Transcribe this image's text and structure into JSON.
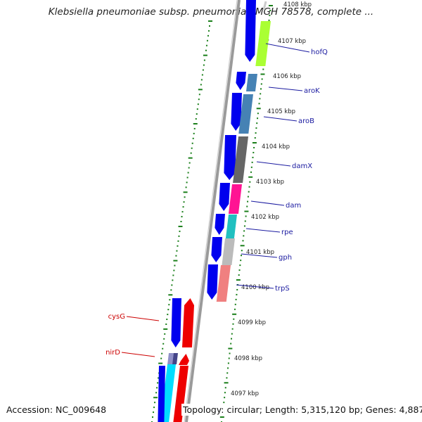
{
  "title": "Klebsiella pneumoniae subsp. pneumoniae MGH 78578, complete ...",
  "footer": {
    "accession": "Accession: NC_009648",
    "stats": "Topology: circular; Length: 5,315,120 bp; Genes: 4,887"
  },
  "colors": {
    "backbone": "#9a9a9a",
    "tick": "#1a7f1a",
    "plus_strand_cds": "#0000ee",
    "minus_strand_cds": "#ee0000",
    "plus_label": "#1a1aa0",
    "minus_label": "#cc0000"
  },
  "kbp_labels": [
    "4108 kbp",
    "4107 kbp",
    "4106 kbp",
    "4105 kbp",
    "4104 kbp",
    "4103 kbp",
    "4102 kbp",
    "4101 kbp",
    "4100 kbp",
    "4099 kbp",
    "4098 kbp",
    "4097 kbp"
  ],
  "genes": [
    {
      "name": "hofQ",
      "strand": "plus",
      "color": "#aaff33"
    },
    {
      "name": "aroK",
      "strand": "plus",
      "color": "#4682b4"
    },
    {
      "name": "aroB",
      "strand": "plus",
      "color": "#4682b4"
    },
    {
      "name": "damX",
      "strand": "plus",
      "color": "#666666"
    },
    {
      "name": "dam",
      "strand": "plus",
      "color": "#ff1493"
    },
    {
      "name": "rpe",
      "strand": "plus",
      "color": "#20c0c0"
    },
    {
      "name": "gph",
      "strand": "plus",
      "color": "#bbbbbb"
    },
    {
      "name": "trpS",
      "strand": "plus",
      "color": "#f08080"
    },
    {
      "name": "cysG",
      "strand": "minus",
      "color": "#ee0000"
    },
    {
      "name": "nirD",
      "strand": "minus",
      "color": "#ee0000"
    }
  ]
}
